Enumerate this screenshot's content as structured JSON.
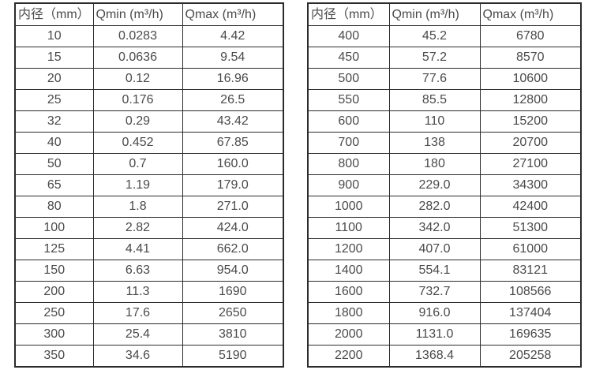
{
  "tables": [
    {
      "name": "flow-rate-table-small-diameters",
      "header": [
        "内径（mm）",
        "Qmin (m³/h)",
        "Qmax (m³/h)"
      ],
      "rows": [
        [
          "10",
          "0.0283",
          "4.42"
        ],
        [
          "15",
          "0.0636",
          "9.54"
        ],
        [
          "20",
          "0.12",
          "16.96"
        ],
        [
          "25",
          "0.176",
          "26.5"
        ],
        [
          "32",
          "0.29",
          "43.42"
        ],
        [
          "40",
          "0.452",
          "67.85"
        ],
        [
          "50",
          "0.7",
          "160.0"
        ],
        [
          "65",
          "1.19",
          "179.0"
        ],
        [
          "80",
          "1.8",
          "271.0"
        ],
        [
          "100",
          "2.82",
          "424.0"
        ],
        [
          "125",
          "4.41",
          "662.0"
        ],
        [
          "150",
          "6.63",
          "954.0"
        ],
        [
          "200",
          "11.3",
          "1690"
        ],
        [
          "250",
          "17.6",
          "2650"
        ],
        [
          "300",
          "25.4",
          "3810"
        ],
        [
          "350",
          "34.6",
          "5190"
        ]
      ]
    },
    {
      "name": "flow-rate-table-large-diameters",
      "header": [
        "内径（mm）",
        "Qmin (m³/h)",
        "Qmax (m³/h)"
      ],
      "rows": [
        [
          "400",
          "45.2",
          "6780"
        ],
        [
          "450",
          "57.2",
          "8570"
        ],
        [
          "500",
          "77.6",
          "10600"
        ],
        [
          "550",
          "85.5",
          "12800"
        ],
        [
          "600",
          "110",
          "15200"
        ],
        [
          "700",
          "138",
          "20700"
        ],
        [
          "800",
          "180",
          "27100"
        ],
        [
          "900",
          "229.0",
          "34300"
        ],
        [
          "1000",
          "282.0",
          "42400"
        ],
        [
          "1100",
          "342.0",
          "51300"
        ],
        [
          "1200",
          "407.0",
          "61000"
        ],
        [
          "1400",
          "554.1",
          "83121"
        ],
        [
          "1600",
          "732.7",
          "108566"
        ],
        [
          "1800",
          "916.0",
          "137404"
        ],
        [
          "2000",
          "1131.0",
          "169635"
        ],
        [
          "2200",
          "1368.4",
          "205258"
        ]
      ]
    }
  ],
  "colors": {
    "background": "#ffffff",
    "border": "#2b2b2b",
    "text": "#4a4a4a"
  }
}
